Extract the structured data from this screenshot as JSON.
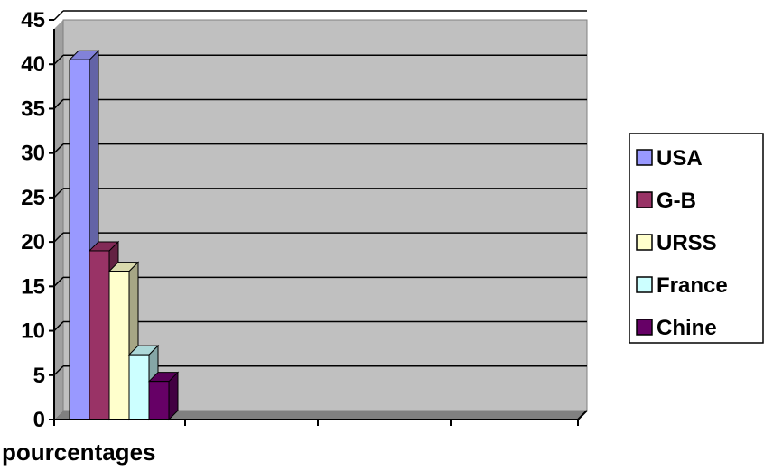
{
  "chart_data": {
    "type": "bar",
    "title": "",
    "xlabel": "pourcentages",
    "ylabel": "",
    "ylim": [
      0,
      45
    ],
    "yticks": [
      "0",
      "5",
      "10",
      "15",
      "20",
      "25",
      "30",
      "35",
      "40",
      "45"
    ],
    "grid": true,
    "legend_position": "right",
    "categories": [
      "pourcentages"
    ],
    "series": [
      {
        "name": "USA",
        "values": [
          40.5
        ],
        "color": "#9999ff"
      },
      {
        "name": "G-B",
        "values": [
          19
        ],
        "color": "#993366"
      },
      {
        "name": "URSS",
        "values": [
          16.7
        ],
        "color": "#ffffcc"
      },
      {
        "name": "France",
        "values": [
          7.3
        ],
        "color": "#ccffff"
      },
      {
        "name": "Chine",
        "values": [
          4.3
        ],
        "color": "#660066"
      }
    ],
    "plot_background": "#c0c0c0"
  }
}
